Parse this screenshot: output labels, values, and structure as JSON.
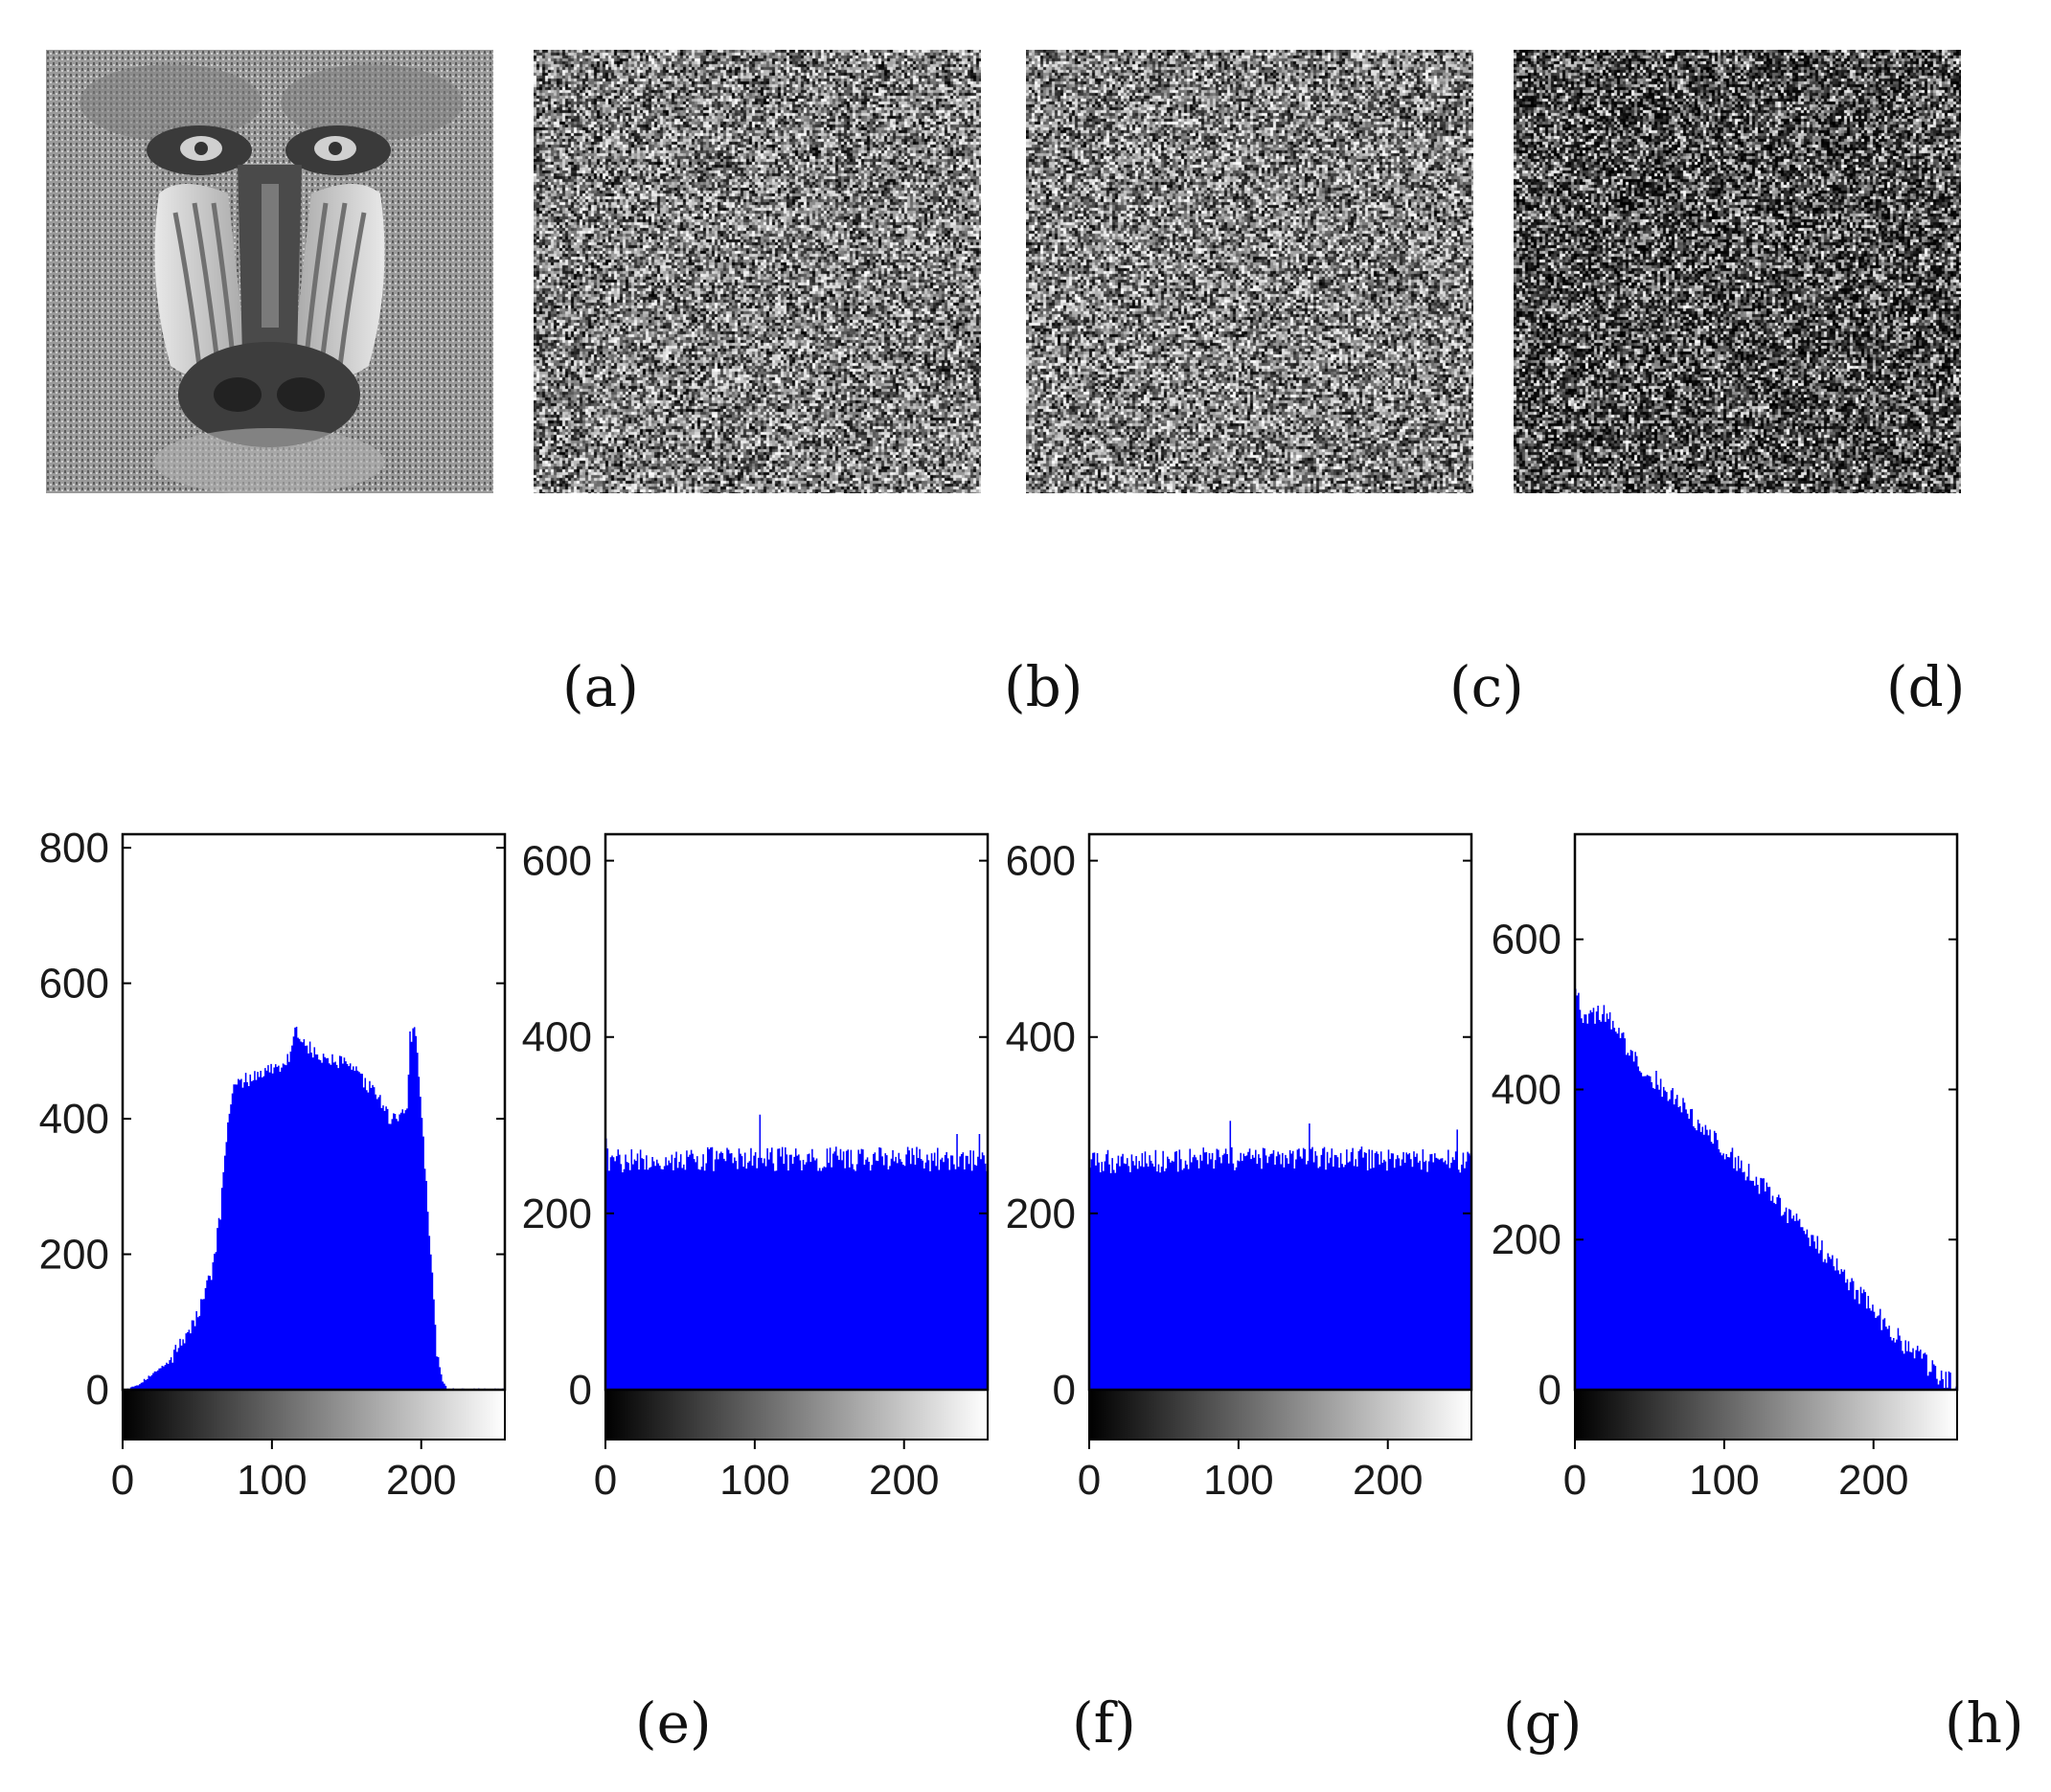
{
  "images": [
    {
      "caption": "(a)",
      "content": "baboon-photo",
      "kind": "plain"
    },
    {
      "caption": "(b)",
      "content": "noise-uniform",
      "kind": "noise",
      "seed": 11,
      "bias": 0.0
    },
    {
      "caption": "(c)",
      "content": "noise-uniform",
      "kind": "noise",
      "seed": 23,
      "bias": 0.05
    },
    {
      "caption": "(d)",
      "content": "noise-skewed",
      "kind": "noise",
      "seed": 37,
      "bias": -0.25
    }
  ],
  "colors": {
    "bar": "#0000ff",
    "axis": "#000000",
    "background": "#ffffff"
  },
  "chart_data": [
    {
      "type": "bar",
      "caption": "(e)",
      "title": "",
      "xlabel": "",
      "ylabel": "",
      "xlim": [
        0,
        256
      ],
      "ylim": [
        0,
        820
      ],
      "xticks": [
        0,
        100,
        200
      ],
      "yticks": [
        0,
        200,
        400,
        600,
        800
      ],
      "colorbar": "grayscale",
      "bins": 256,
      "profile_points": [
        [
          0,
          0
        ],
        [
          10,
          8
        ],
        [
          30,
          40
        ],
        [
          50,
          110
        ],
        [
          60,
          180
        ],
        [
          65,
          260
        ],
        [
          70,
          400
        ],
        [
          75,
          450
        ],
        [
          90,
          465
        ],
        [
          110,
          485
        ],
        [
          115,
          530
        ],
        [
          130,
          490
        ],
        [
          150,
          480
        ],
        [
          170,
          435
        ],
        [
          180,
          395
        ],
        [
          190,
          420
        ],
        [
          192,
          520
        ],
        [
          196,
          530
        ],
        [
          200,
          400
        ],
        [
          205,
          230
        ],
        [
          210,
          60
        ],
        [
          214,
          10
        ],
        [
          218,
          0
        ],
        [
          255,
          0
        ]
      ]
    },
    {
      "type": "bar",
      "caption": "(f)",
      "title": "",
      "xlabel": "",
      "ylabel": "",
      "xlim": [
        0,
        256
      ],
      "ylim": [
        0,
        630
      ],
      "xticks": [
        0,
        100,
        200
      ],
      "yticks": [
        0,
        200,
        400,
        600
      ],
      "colorbar": "grayscale",
      "bins": 256,
      "profile_points": [
        [
          0,
          260
        ],
        [
          100,
          262
        ],
        [
          200,
          262
        ],
        [
          255,
          260
        ]
      ],
      "noise": 14,
      "peaks": [
        [
          0,
          285
        ],
        [
          103,
          312
        ],
        [
          235,
          290
        ],
        [
          250,
          290
        ]
      ]
    },
    {
      "type": "bar",
      "caption": "(g)",
      "title": "",
      "xlabel": "",
      "ylabel": "",
      "xlim": [
        0,
        256
      ],
      "ylim": [
        0,
        630
      ],
      "xticks": [
        0,
        100,
        200
      ],
      "yticks": [
        0,
        200,
        400,
        600
      ],
      "colorbar": "grayscale",
      "bins": 256,
      "profile_points": [
        [
          0,
          258
        ],
        [
          100,
          262
        ],
        [
          200,
          262
        ],
        [
          255,
          258
        ]
      ],
      "noise": 14,
      "peaks": [
        [
          94,
          305
        ],
        [
          147,
          302
        ],
        [
          246,
          295
        ]
      ]
    },
    {
      "type": "bar",
      "caption": "(h)",
      "title": "",
      "xlabel": "",
      "ylabel": "",
      "xlim": [
        0,
        256
      ],
      "ylim": [
        0,
        740
      ],
      "xticks": [
        0,
        100,
        200
      ],
      "yticks": [
        0,
        200,
        400,
        600
      ],
      "colorbar": "grayscale",
      "bins": 256,
      "profile_points": [
        [
          0,
          540
        ],
        [
          5,
          500
        ],
        [
          20,
          500
        ],
        [
          40,
          440
        ],
        [
          60,
          400
        ],
        [
          90,
          340
        ],
        [
          120,
          280
        ],
        [
          150,
          220
        ],
        [
          180,
          150
        ],
        [
          210,
          80
        ],
        [
          240,
          25
        ],
        [
          255,
          5
        ]
      ],
      "noise": 14
    }
  ]
}
